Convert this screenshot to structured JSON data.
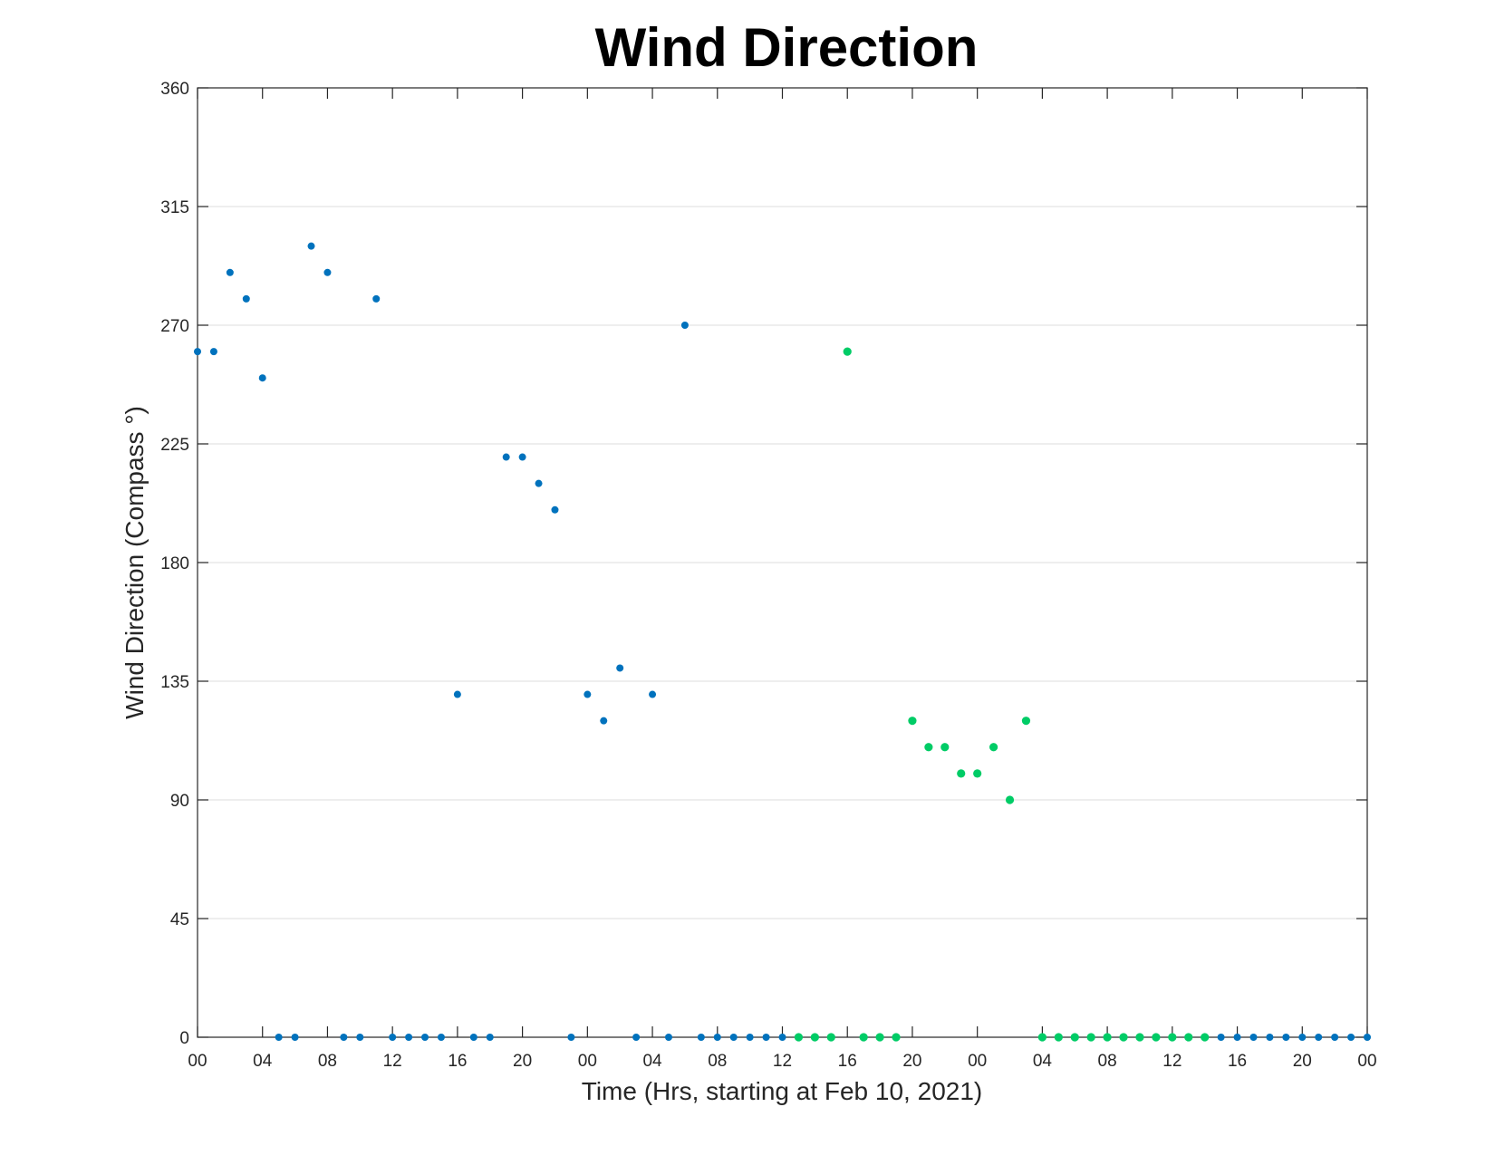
{
  "chart_data": {
    "type": "scatter",
    "title": "Wind Direction",
    "xlabel": "Time (Hrs, starting at Feb 10, 2021)",
    "ylabel": "Wind Direction (Compass °)",
    "xlim": [
      0,
      72
    ],
    "ylim": [
      0,
      360
    ],
    "x_unit": "hours since Feb 10, 2021 00:00",
    "x_ticks": [
      0,
      4,
      8,
      12,
      16,
      20,
      24,
      28,
      32,
      36,
      40,
      44,
      48,
      52,
      56,
      60,
      64,
      68,
      72
    ],
    "x_tick_labels": [
      "00",
      "04",
      "08",
      "12",
      "16",
      "20",
      "00",
      "04",
      "08",
      "12",
      "16",
      "20",
      "00",
      "04",
      "08",
      "12",
      "16",
      "20",
      "00"
    ],
    "y_ticks": [
      0,
      45,
      90,
      135,
      180,
      225,
      270,
      315,
      360
    ],
    "y_tick_labels": [
      "0",
      "45",
      "90",
      "135",
      "180",
      "225",
      "270",
      "315",
      "360"
    ],
    "grid": "horizontal",
    "colors": {
      "blue": "#0072bd",
      "green": "#00cc66"
    },
    "points": [
      {
        "x": 0,
        "y": 260,
        "c": "blue"
      },
      {
        "x": 1,
        "y": 260,
        "c": "blue"
      },
      {
        "x": 2,
        "y": 290,
        "c": "blue"
      },
      {
        "x": 3,
        "y": 280,
        "c": "blue"
      },
      {
        "x": 4,
        "y": 250,
        "c": "blue"
      },
      {
        "x": 5,
        "y": 0,
        "c": "blue"
      },
      {
        "x": 6,
        "y": 0,
        "c": "blue"
      },
      {
        "x": 7,
        "y": 300,
        "c": "blue"
      },
      {
        "x": 8,
        "y": 290,
        "c": "blue"
      },
      {
        "x": 9,
        "y": 0,
        "c": "blue"
      },
      {
        "x": 10,
        "y": 0,
        "c": "blue"
      },
      {
        "x": 11,
        "y": 280,
        "c": "blue"
      },
      {
        "x": 12,
        "y": 0,
        "c": "blue"
      },
      {
        "x": 13,
        "y": 0,
        "c": "blue"
      },
      {
        "x": 14,
        "y": 0,
        "c": "blue"
      },
      {
        "x": 15,
        "y": 0,
        "c": "blue"
      },
      {
        "x": 16,
        "y": 130,
        "c": "blue"
      },
      {
        "x": 17,
        "y": 0,
        "c": "blue"
      },
      {
        "x": 18,
        "y": 0,
        "c": "blue"
      },
      {
        "x": 19,
        "y": 220,
        "c": "blue"
      },
      {
        "x": 20,
        "y": 220,
        "c": "blue"
      },
      {
        "x": 21,
        "y": 210,
        "c": "blue"
      },
      {
        "x": 22,
        "y": 200,
        "c": "blue"
      },
      {
        "x": 23,
        "y": 0,
        "c": "blue"
      },
      {
        "x": 24,
        "y": 130,
        "c": "blue"
      },
      {
        "x": 25,
        "y": 120,
        "c": "blue"
      },
      {
        "x": 26,
        "y": 140,
        "c": "blue"
      },
      {
        "x": 27,
        "y": 0,
        "c": "blue"
      },
      {
        "x": 28,
        "y": 130,
        "c": "blue"
      },
      {
        "x": 29,
        "y": 0,
        "c": "blue"
      },
      {
        "x": 30,
        "y": 270,
        "c": "blue"
      },
      {
        "x": 31,
        "y": 0,
        "c": "blue"
      },
      {
        "x": 32,
        "y": 0,
        "c": "blue"
      },
      {
        "x": 33,
        "y": 0,
        "c": "blue"
      },
      {
        "x": 34,
        "y": 0,
        "c": "blue"
      },
      {
        "x": 35,
        "y": 0,
        "c": "blue"
      },
      {
        "x": 36,
        "y": 0,
        "c": "blue"
      },
      {
        "x": 37,
        "y": 0,
        "c": "green"
      },
      {
        "x": 38,
        "y": 0,
        "c": "green"
      },
      {
        "x": 39,
        "y": 0,
        "c": "green"
      },
      {
        "x": 40,
        "y": 260,
        "c": "green"
      },
      {
        "x": 41,
        "y": 0,
        "c": "green"
      },
      {
        "x": 42,
        "y": 0,
        "c": "green"
      },
      {
        "x": 43,
        "y": 0,
        "c": "green"
      },
      {
        "x": 44,
        "y": 120,
        "c": "green"
      },
      {
        "x": 45,
        "y": 110,
        "c": "green"
      },
      {
        "x": 46,
        "y": 110,
        "c": "green"
      },
      {
        "x": 47,
        "y": 100,
        "c": "green"
      },
      {
        "x": 48,
        "y": 100,
        "c": "green"
      },
      {
        "x": 49,
        "y": 110,
        "c": "green"
      },
      {
        "x": 50,
        "y": 90,
        "c": "green"
      },
      {
        "x": 51,
        "y": 120,
        "c": "green"
      },
      {
        "x": 52,
        "y": 0,
        "c": "green"
      },
      {
        "x": 53,
        "y": 0,
        "c": "green"
      },
      {
        "x": 54,
        "y": 0,
        "c": "green"
      },
      {
        "x": 55,
        "y": 0,
        "c": "green"
      },
      {
        "x": 56,
        "y": 0,
        "c": "green"
      },
      {
        "x": 57,
        "y": 0,
        "c": "green"
      },
      {
        "x": 58,
        "y": 0,
        "c": "green"
      },
      {
        "x": 59,
        "y": 0,
        "c": "green"
      },
      {
        "x": 60,
        "y": 0,
        "c": "green"
      },
      {
        "x": 61,
        "y": 0,
        "c": "green"
      },
      {
        "x": 62,
        "y": 0,
        "c": "green"
      },
      {
        "x": 63,
        "y": 0,
        "c": "blue"
      },
      {
        "x": 64,
        "y": 0,
        "c": "blue"
      },
      {
        "x": 65,
        "y": 0,
        "c": "blue"
      },
      {
        "x": 66,
        "y": 0,
        "c": "blue"
      },
      {
        "x": 67,
        "y": 0,
        "c": "blue"
      },
      {
        "x": 68,
        "y": 0,
        "c": "blue"
      },
      {
        "x": 69,
        "y": 0,
        "c": "blue"
      },
      {
        "x": 70,
        "y": 0,
        "c": "blue"
      },
      {
        "x": 71,
        "y": 0,
        "c": "blue"
      },
      {
        "x": 72,
        "y": 0,
        "c": "blue"
      }
    ]
  }
}
